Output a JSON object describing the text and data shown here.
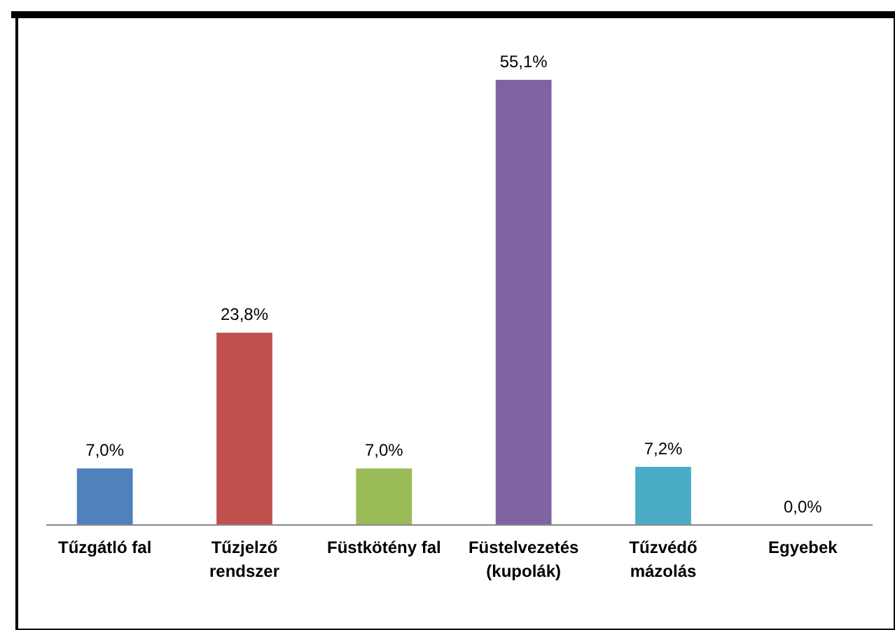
{
  "chart_data": {
    "type": "bar",
    "categories": [
      "Tűzgátló fal",
      "Tűzjelző rendszer",
      "Füstkötény fal",
      "Füstelvezetés (kupolák)",
      "Tűzvédő mázolás",
      "Egyebek"
    ],
    "values": [
      7.0,
      23.8,
      7.0,
      55.1,
      7.2,
      0.0
    ],
    "colors": [
      "#4f81bd",
      "#c0504d",
      "#9bbb59",
      "#8064a2",
      "#4bacc6",
      "#f79646"
    ],
    "value_labels": [
      "7,0%",
      "23,8%",
      "7,0%",
      "55,1%",
      "7,2%",
      "0,0%"
    ]
  }
}
